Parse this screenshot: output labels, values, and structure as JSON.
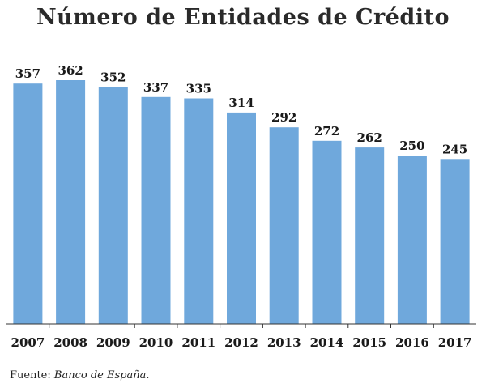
{
  "chart_data": {
    "type": "bar",
    "title": "Número de Entidades de Crédito",
    "categories": [
      "2007",
      "2008",
      "2009",
      "2010",
      "2011",
      "2012",
      "2013",
      "2014",
      "2015",
      "2016",
      "2017"
    ],
    "values": [
      357,
      362,
      352,
      337,
      335,
      314,
      292,
      272,
      262,
      250,
      245
    ],
    "xlabel": "",
    "ylabel": "",
    "ylim": [
      0,
      362
    ],
    "data_labels": true,
    "grid": false,
    "bar_color": "#6fa8dc"
  },
  "source": {
    "label": "Fuente:",
    "text": "Banco de España."
  }
}
